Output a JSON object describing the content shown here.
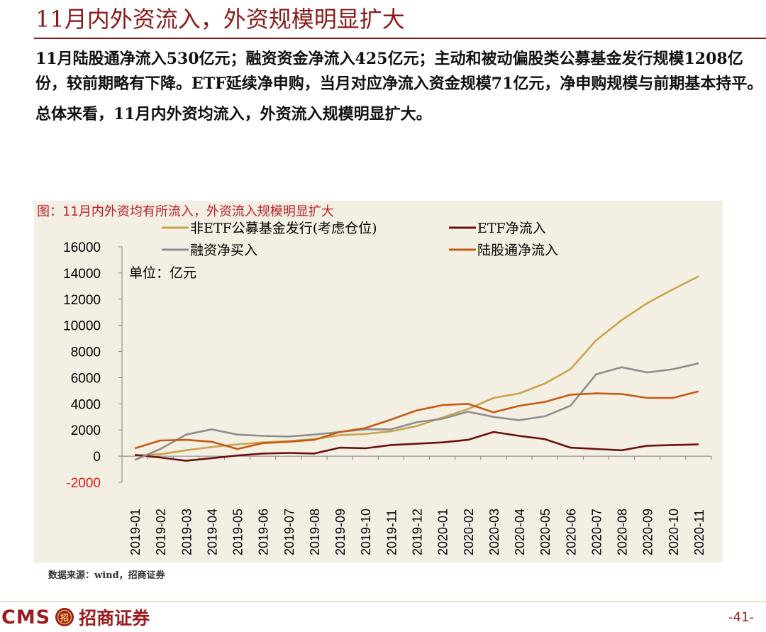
{
  "page": {
    "title": "11月内外资流入，外资规模明显扩大",
    "paragraphs": [
      "11月陆股通净流入530亿元；融资资金净流入425亿元；主动和被动偏股类公募基金发行规模1208亿份，较前期略有下降。ETF延续净申购，当月对应净流入资金规模71亿元，净申购规模与前期基本持平。",
      "总体来看，11月内外资均流入，外资流入规模明显扩大。"
    ],
    "source": "数据来源：wind，招商证券",
    "logo_latin": "CMS",
    "logo_chinese": "招商证券",
    "logo_emblem_text": "招",
    "page_number": "-41-"
  },
  "chart_data": {
    "type": "line",
    "title": "图：11月内外资均有所流入，外资流入规模明显扩大",
    "unit_label": "单位：亿元",
    "ylim": [
      -2000,
      16000
    ],
    "yticks": [
      "16000",
      "14000",
      "12000",
      "10000",
      "8000",
      "6000",
      "4000",
      "2000",
      "0",
      "-2000"
    ],
    "ytick_values": [
      16000,
      14000,
      12000,
      10000,
      8000,
      6000,
      4000,
      2000,
      0,
      -2000
    ],
    "negative_tick_color": "#e3191c",
    "categories": [
      "2019-01",
      "2019-02",
      "2019-03",
      "2019-04",
      "2019-05",
      "2019-06",
      "2019-07",
      "2019-08",
      "2019-09",
      "2019-10",
      "2019-11",
      "2019-12",
      "2020-01",
      "2020-02",
      "2020-03",
      "2020-04",
      "2020-05",
      "2020-06",
      "2020-07",
      "2020-08",
      "2020-09",
      "2020-10",
      "2020-11"
    ],
    "series": [
      {
        "name": "非ETF公募基金发行(考虑仓位)",
        "color": "#c9a34e",
        "values": [
          50,
          150,
          450,
          700,
          900,
          1050,
          1150,
          1300,
          1600,
          1700,
          1900,
          2300,
          2950,
          3600,
          4450,
          4800,
          5550,
          6650,
          8850,
          10400,
          11700,
          12750,
          13750
        ]
      },
      {
        "name": "ETF净流入",
        "color": "#6b1010",
        "values": [
          100,
          -100,
          -350,
          -150,
          50,
          200,
          250,
          200,
          650,
          600,
          850,
          950,
          1050,
          1250,
          1850,
          1550,
          1300,
          650,
          550,
          450,
          800,
          850,
          900
        ]
      },
      {
        "name": "融资净买入",
        "color": "#8e8e8e",
        "values": [
          -300,
          550,
          1650,
          2050,
          1650,
          1550,
          1500,
          1650,
          1850,
          2050,
          2050,
          2600,
          2850,
          3400,
          3000,
          2750,
          3050,
          3850,
          6250,
          6800,
          6400,
          6650,
          7100
        ]
      },
      {
        "name": "陆股通净流入",
        "color": "#c55a11",
        "values": [
          600,
          1200,
          1250,
          1100,
          550,
          1000,
          1100,
          1250,
          1850,
          2150,
          2800,
          3500,
          3900,
          4000,
          3350,
          3850,
          4150,
          4700,
          4800,
          4750,
          4450,
          4450,
          4950
        ]
      }
    ],
    "legend": "top"
  }
}
